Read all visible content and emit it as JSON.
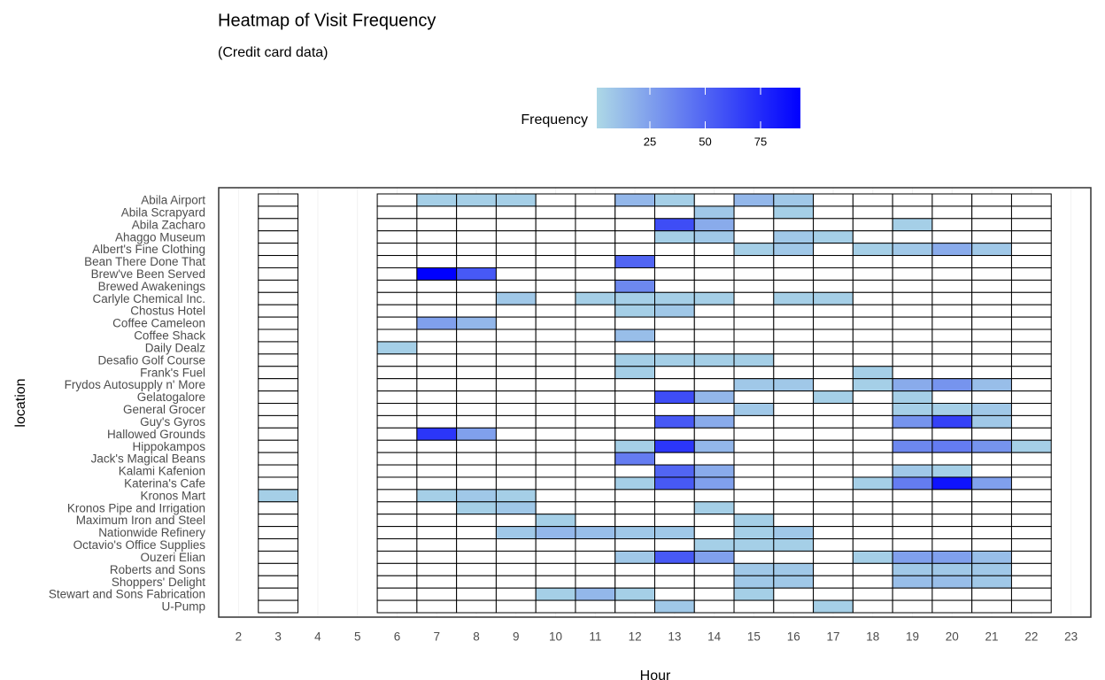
{
  "chart_data": {
    "type": "heatmap",
    "title": "Heatmap of Visit Frequency",
    "subtitle": "(Credit card data)",
    "x_label": "Hour",
    "y_label": "location",
    "x": [
      3,
      6,
      7,
      8,
      9,
      10,
      11,
      12,
      13,
      14,
      15,
      16,
      17,
      18,
      19,
      20,
      21,
      22
    ],
    "categories": [
      "Abila Airport",
      "Abila Scrapyard",
      "Abila Zacharo",
      "Ahaggo Museum",
      "Albert's Fine Clothing",
      "Bean There Done That",
      "Brew've Been Served",
      "Brewed Awakenings",
      "Carlyle Chemical Inc.",
      "Chostus Hotel",
      "Coffee Cameleon",
      "Coffee Shack",
      "Daily Dealz",
      "Desafio Golf Course",
      "Frank's Fuel",
      "Frydos Autosupply n' More",
      "Gelatogalore",
      "General Grocer",
      "Guy's Gyros",
      "Hallowed Grounds",
      "Hippokampos",
      "Jack's Magical Beans",
      "Kalami Kafenion",
      "Katerina's Cafe",
      "Kronos Mart",
      "Kronos Pipe and Irrigation",
      "Maximum Iron and Steel",
      "Nationwide Refinery",
      "Octavio's Office Supplies",
      "Ouzeri Elian",
      "Roberts and Sons",
      "Shoppers' Delight",
      "Stewart and Sons Fabrication",
      "U-Pump"
    ],
    "values": [
      [
        null,
        null,
        5,
        5,
        5,
        null,
        null,
        15,
        5,
        null,
        15,
        8,
        null,
        null,
        null,
        null,
        null,
        null
      ],
      [
        null,
        null,
        null,
        null,
        null,
        null,
        null,
        null,
        null,
        8,
        null,
        5,
        null,
        null,
        null,
        null,
        null,
        null
      ],
      [
        null,
        null,
        null,
        null,
        null,
        null,
        null,
        null,
        60,
        20,
        null,
        null,
        null,
        null,
        5,
        null,
        null,
        null
      ],
      [
        null,
        null,
        null,
        null,
        null,
        null,
        null,
        null,
        5,
        8,
        null,
        8,
        5,
        null,
        null,
        null,
        null,
        null
      ],
      [
        null,
        null,
        null,
        null,
        null,
        null,
        null,
        null,
        null,
        null,
        5,
        8,
        null,
        5,
        8,
        20,
        8,
        null
      ],
      [
        null,
        null,
        null,
        null,
        null,
        null,
        null,
        50,
        null,
        null,
        null,
        null,
        null,
        null,
        null,
        null,
        null,
        null
      ],
      [
        null,
        null,
        93,
        55,
        null,
        null,
        null,
        null,
        null,
        null,
        null,
        null,
        null,
        null,
        null,
        null,
        null,
        null
      ],
      [
        null,
        null,
        null,
        null,
        null,
        null,
        null,
        35,
        null,
        null,
        null,
        null,
        null,
        null,
        null,
        null,
        null,
        null
      ],
      [
        null,
        null,
        null,
        null,
        8,
        null,
        5,
        5,
        5,
        5,
        null,
        5,
        5,
        null,
        null,
        null,
        null,
        null
      ],
      [
        null,
        null,
        null,
        null,
        null,
        null,
        null,
        5,
        8,
        null,
        null,
        null,
        null,
        null,
        null,
        null,
        null,
        null
      ],
      [
        null,
        null,
        25,
        15,
        null,
        null,
        null,
        null,
        null,
        null,
        null,
        null,
        null,
        null,
        null,
        null,
        null,
        null
      ],
      [
        null,
        null,
        null,
        null,
        null,
        null,
        null,
        12,
        null,
        null,
        null,
        null,
        null,
        null,
        null,
        null,
        null,
        null
      ],
      [
        null,
        5,
        null,
        null,
        null,
        null,
        null,
        null,
        null,
        null,
        null,
        null,
        null,
        null,
        null,
        null,
        null,
        null
      ],
      [
        null,
        null,
        null,
        null,
        null,
        null,
        null,
        5,
        5,
        5,
        5,
        null,
        null,
        null,
        null,
        null,
        null,
        null
      ],
      [
        null,
        null,
        null,
        null,
        null,
        null,
        null,
        5,
        null,
        null,
        null,
        null,
        null,
        5,
        null,
        null,
        null,
        null
      ],
      [
        null,
        null,
        null,
        null,
        null,
        null,
        null,
        null,
        null,
        null,
        8,
        8,
        null,
        5,
        20,
        30,
        12,
        null
      ],
      [
        null,
        null,
        null,
        null,
        null,
        null,
        null,
        null,
        60,
        15,
        null,
        null,
        5,
        null,
        5,
        null,
        null,
        null
      ],
      [
        null,
        null,
        null,
        null,
        null,
        null,
        null,
        null,
        null,
        null,
        8,
        null,
        null,
        null,
        5,
        5,
        8,
        null
      ],
      [
        null,
        null,
        null,
        null,
        null,
        null,
        null,
        null,
        55,
        20,
        null,
        null,
        null,
        null,
        30,
        65,
        8,
        null
      ],
      [
        null,
        null,
        70,
        25,
        null,
        null,
        null,
        null,
        null,
        null,
        null,
        null,
        null,
        null,
        null,
        null,
        null,
        null
      ],
      [
        null,
        null,
        null,
        null,
        null,
        null,
        null,
        5,
        70,
        15,
        null,
        null,
        null,
        null,
        35,
        40,
        30,
        5
      ],
      [
        null,
        null,
        null,
        null,
        null,
        null,
        null,
        40,
        null,
        null,
        null,
        null,
        null,
        null,
        null,
        null,
        null,
        null
      ],
      [
        null,
        null,
        null,
        null,
        null,
        null,
        null,
        null,
        50,
        20,
        null,
        null,
        null,
        null,
        8,
        5,
        null,
        null
      ],
      [
        null,
        null,
        null,
        null,
        null,
        null,
        null,
        5,
        55,
        25,
        null,
        null,
        null,
        5,
        40,
        85,
        25,
        null
      ],
      [
        5,
        null,
        5,
        8,
        5,
        null,
        null,
        null,
        null,
        null,
        null,
        null,
        null,
        null,
        null,
        null,
        null,
        null
      ],
      [
        null,
        null,
        null,
        5,
        8,
        null,
        null,
        null,
        null,
        5,
        null,
        null,
        null,
        null,
        null,
        null,
        null,
        null
      ],
      [
        null,
        null,
        null,
        null,
        null,
        5,
        null,
        null,
        null,
        null,
        5,
        null,
        null,
        null,
        null,
        null,
        null,
        null
      ],
      [
        null,
        null,
        null,
        null,
        8,
        15,
        12,
        8,
        8,
        null,
        5,
        8,
        null,
        null,
        null,
        null,
        null,
        null
      ],
      [
        null,
        null,
        null,
        null,
        null,
        null,
        null,
        null,
        null,
        5,
        5,
        5,
        null,
        null,
        null,
        null,
        null,
        null
      ],
      [
        null,
        null,
        null,
        null,
        null,
        null,
        null,
        8,
        55,
        25,
        null,
        null,
        null,
        5,
        25,
        25,
        12,
        null
      ],
      [
        null,
        null,
        null,
        null,
        null,
        null,
        null,
        null,
        null,
        null,
        8,
        8,
        null,
        null,
        8,
        8,
        8,
        null
      ],
      [
        null,
        null,
        null,
        null,
        null,
        null,
        null,
        null,
        null,
        null,
        8,
        8,
        null,
        null,
        12,
        12,
        8,
        null
      ],
      [
        null,
        null,
        null,
        null,
        null,
        5,
        15,
        5,
        null,
        null,
        5,
        null,
        null,
        null,
        null,
        null,
        null,
        null
      ],
      [
        null,
        null,
        null,
        null,
        null,
        null,
        null,
        null,
        8,
        null,
        null,
        null,
        5,
        null,
        null,
        null,
        null,
        null
      ]
    ],
    "xlim": [
      1.5,
      23.5
    ],
    "xticks": [
      2,
      3,
      4,
      5,
      6,
      7,
      8,
      9,
      10,
      11,
      12,
      13,
      14,
      15,
      16,
      17,
      18,
      19,
      20,
      21,
      22,
      23
    ],
    "colorbar": {
      "title": "Frequency",
      "lim": [
        1,
        93
      ],
      "ticks": [
        25,
        50,
        75
      ],
      "colors": [
        "#add8e6",
        "#0000ff"
      ]
    }
  }
}
